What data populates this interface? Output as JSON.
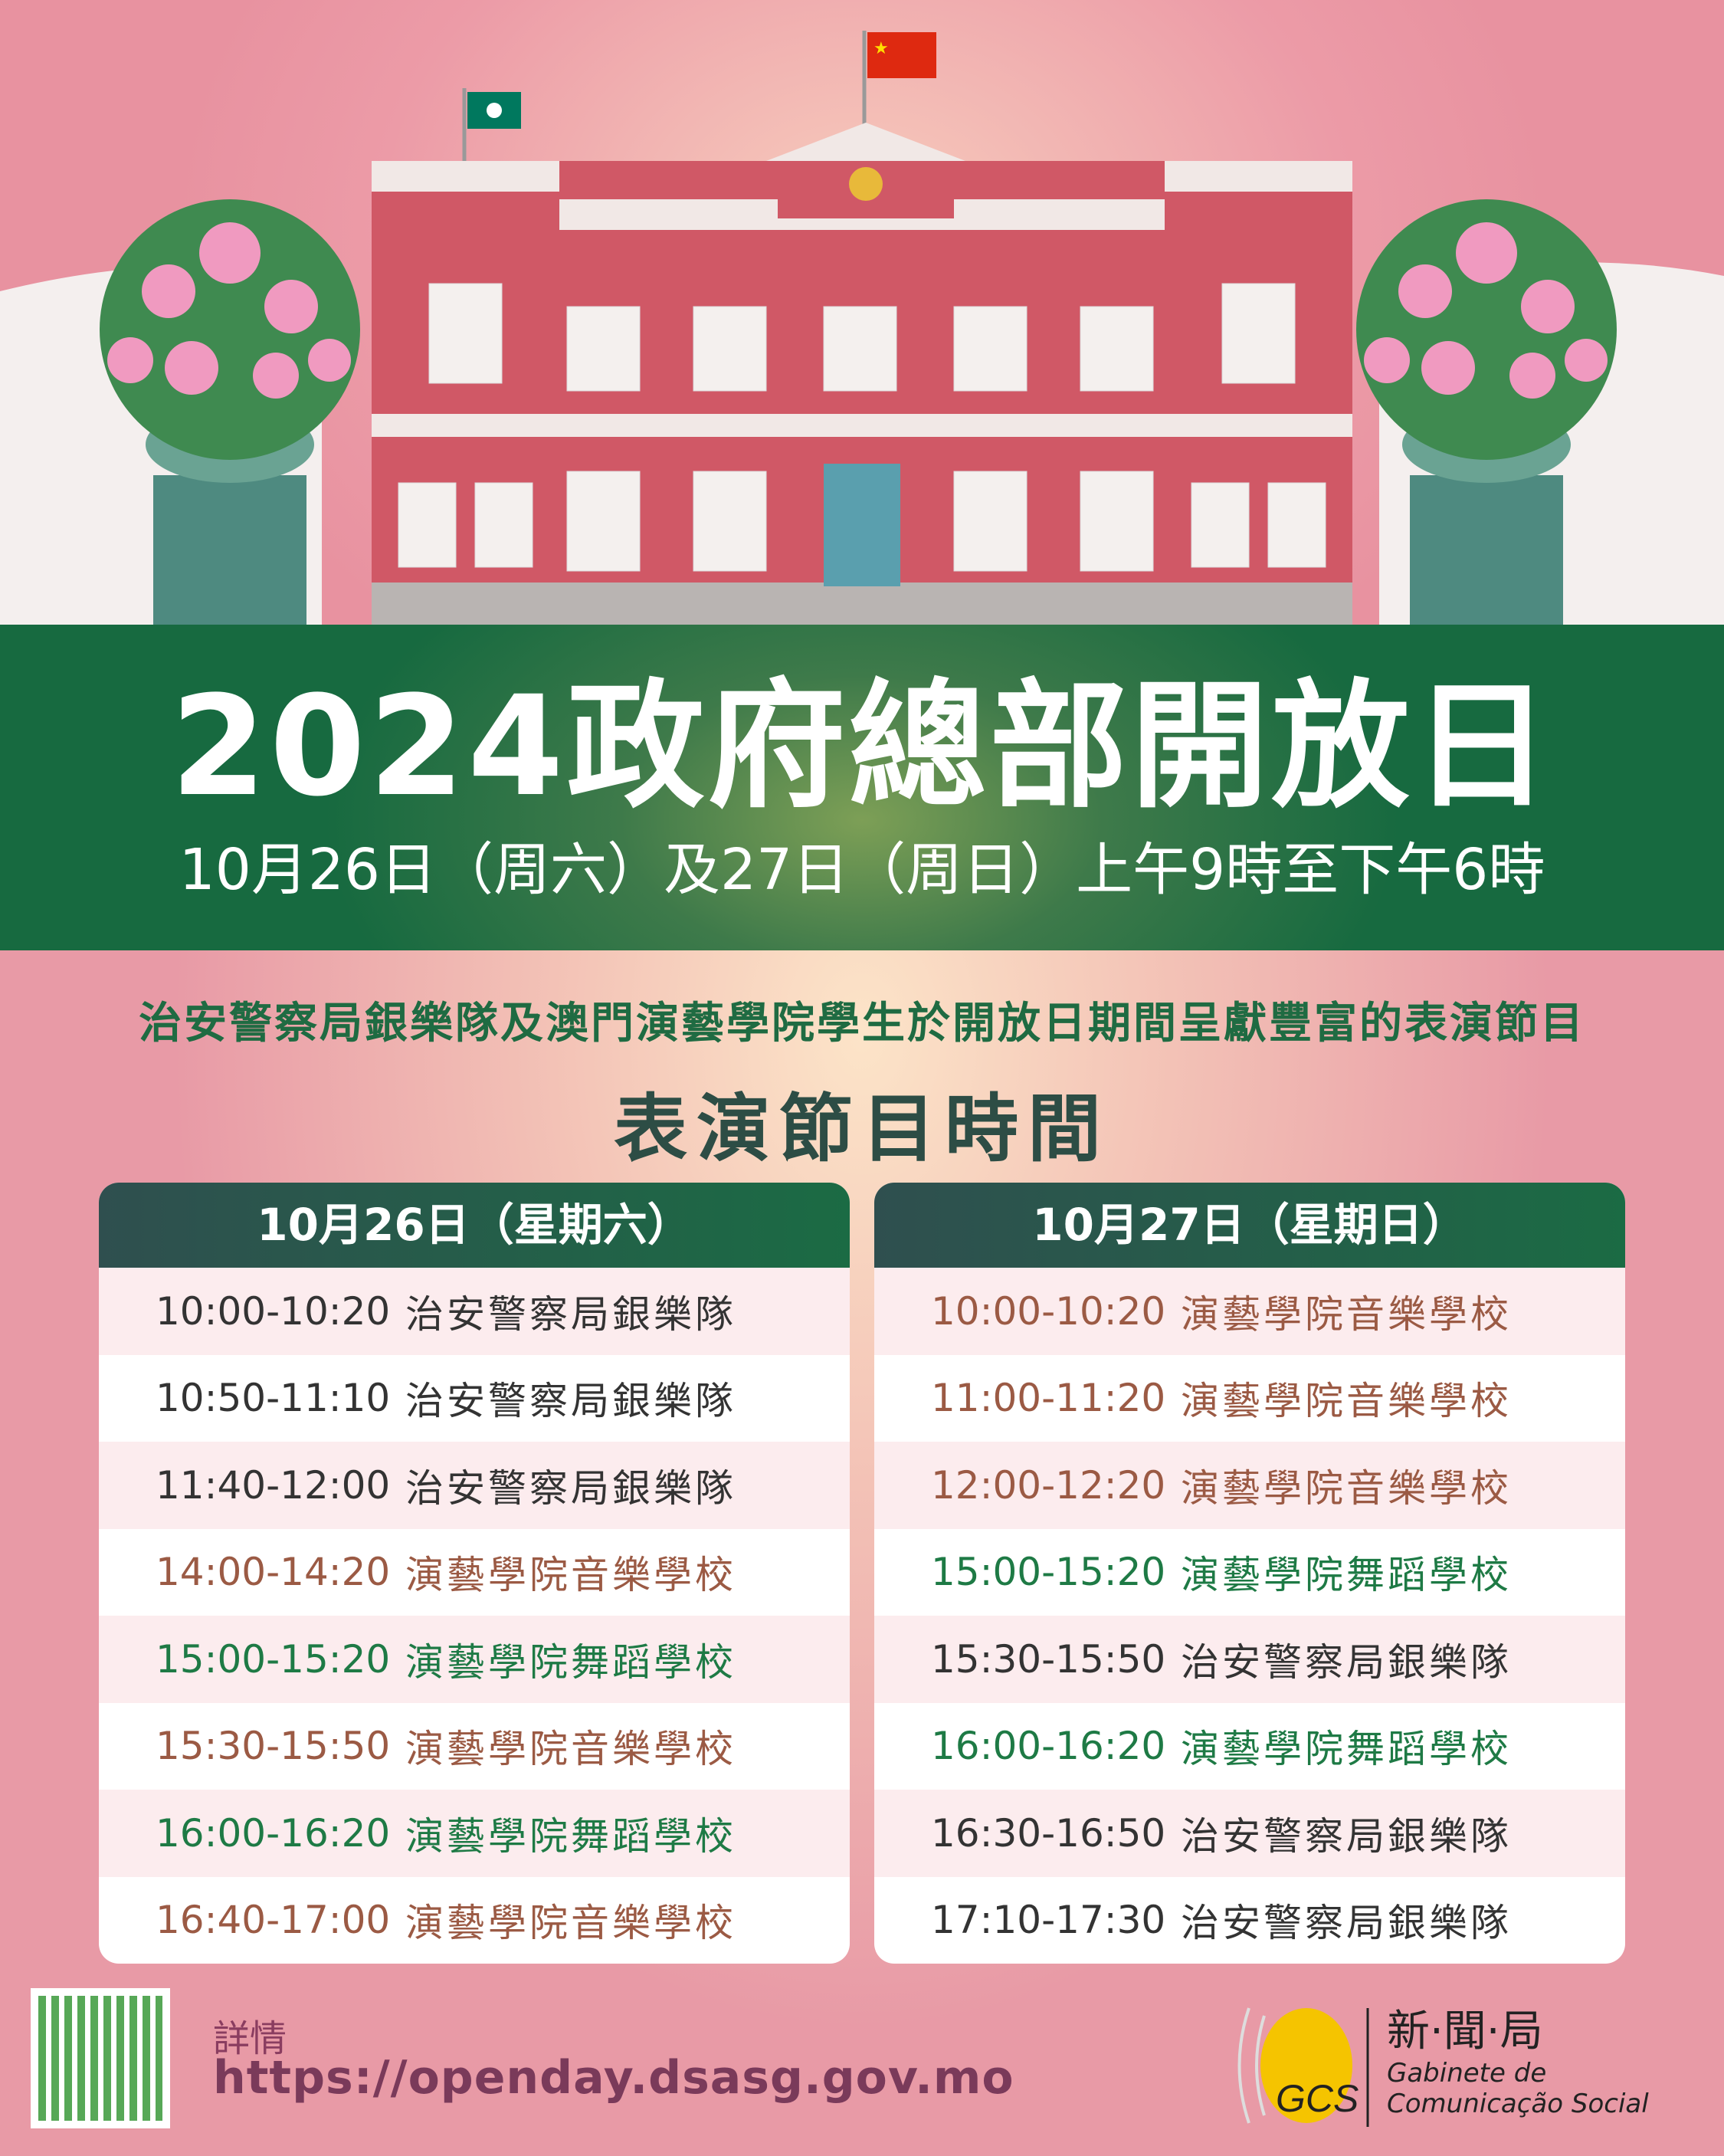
{
  "banner": {
    "title": "2024政府總部開放日",
    "dates": "10月26日（周六）及27日（周日）上午9時至下午6時"
  },
  "subtitle": "治安警察局銀樂隊及澳門演藝學院學生於開放日期間呈獻豐富的表演節目",
  "heading": "表演節目時間",
  "colors": {
    "band": "#333333",
    "music": "#9b5a44",
    "dance": "#1e7a45"
  },
  "schedule": [
    {
      "date": "10月26日（星期六）",
      "rows": [
        {
          "time": "10:00-10:20",
          "name": "治安警察局銀樂隊",
          "type": "band"
        },
        {
          "time": "10:50-11:10",
          "name": "治安警察局銀樂隊",
          "type": "band"
        },
        {
          "time": "11:40-12:00",
          "name": "治安警察局銀樂隊",
          "type": "band"
        },
        {
          "time": "14:00-14:20",
          "name": "演藝學院音樂學校",
          "type": "music"
        },
        {
          "time": "15:00-15:20",
          "name": "演藝學院舞蹈學校",
          "type": "dance"
        },
        {
          "time": "15:30-15:50",
          "name": "演藝學院音樂學校",
          "type": "music"
        },
        {
          "time": "16:00-16:20",
          "name": "演藝學院舞蹈學校",
          "type": "dance"
        },
        {
          "time": "16:40-17:00",
          "name": "演藝學院音樂學校",
          "type": "music"
        }
      ]
    },
    {
      "date": "10月27日（星期日）",
      "rows": [
        {
          "time": "10:00-10:20",
          "name": "演藝學院音樂學校",
          "type": "music"
        },
        {
          "time": "11:00-11:20",
          "name": "演藝學院音樂學校",
          "type": "music"
        },
        {
          "time": "12:00-12:20",
          "name": "演藝學院音樂學校",
          "type": "music"
        },
        {
          "time": "15:00-15:20",
          "name": "演藝學院舞蹈學校",
          "type": "dance"
        },
        {
          "time": "15:30-15:50",
          "name": "治安警察局銀樂隊",
          "type": "band"
        },
        {
          "time": "16:00-16:20",
          "name": "演藝學院舞蹈學校",
          "type": "dance"
        },
        {
          "time": "16:30-16:50",
          "name": "治安警察局銀樂隊",
          "type": "band"
        },
        {
          "time": "17:10-17:30",
          "name": "治安警察局銀樂隊",
          "type": "band"
        }
      ]
    }
  ],
  "footer": {
    "more_label": "詳情",
    "url": "https://openday.dsasg.gov.mo",
    "logo": {
      "name_zh": "新·聞·局",
      "name_pt1": "Gabinete de",
      "name_pt2": "Comunicação Social",
      "initials": "GCS"
    }
  }
}
